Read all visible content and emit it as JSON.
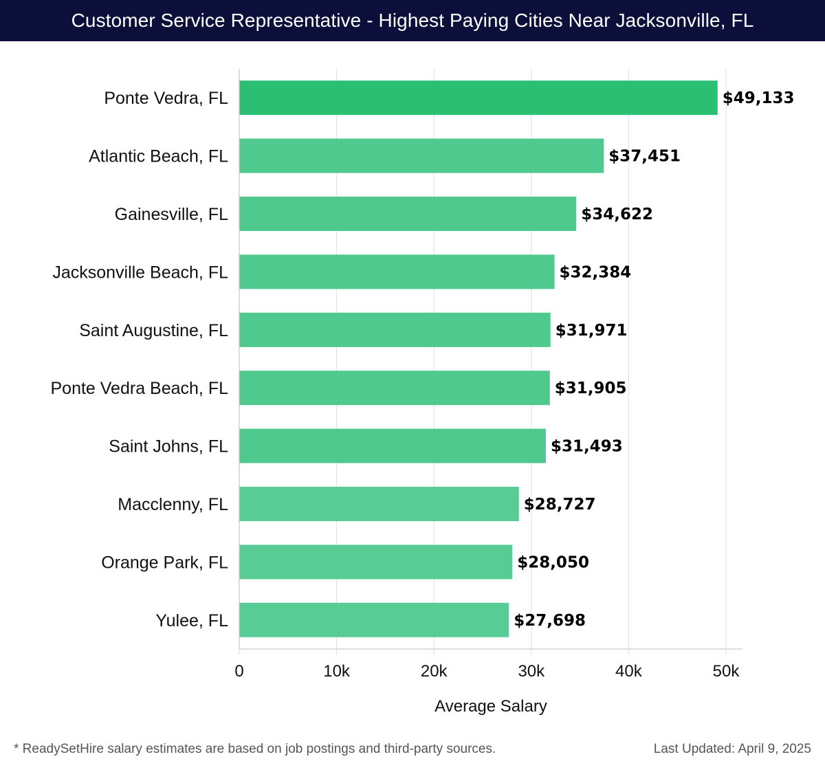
{
  "header": {
    "title": "Customer Service Representative - Highest Paying Cities Near Jacksonville, FL"
  },
  "footer": {
    "note": "* ReadySetHire salary estimates are based on job postings and third-party sources.",
    "last_updated": "Last Updated: April 9, 2025"
  },
  "colors": {
    "header_bg": "#0c0f3a",
    "bar_top": "#2bbf74",
    "bar": "#50c98e",
    "bar_light": "#58cc95",
    "grid": "#e3e3e3",
    "axis": "#cccccc"
  },
  "chart_data": {
    "type": "bar",
    "orientation": "horizontal",
    "title": "Customer Service Representative - Highest Paying Cities Near Jacksonville, FL",
    "xlabel": "Average Salary",
    "ylabel": "",
    "xlim": [
      0,
      50000
    ],
    "grid": true,
    "categories": [
      "Ponte Vedra, FL",
      "Atlantic Beach, FL",
      "Gainesville, FL",
      "Jacksonville Beach, FL",
      "Saint Augustine, FL",
      "Ponte Vedra Beach, FL",
      "Saint Johns, FL",
      "Macclenny, FL",
      "Orange Park, FL",
      "Yulee, FL"
    ],
    "values": [
      49133,
      37451,
      34622,
      32384,
      31971,
      31905,
      31493,
      28727,
      28050,
      27698
    ],
    "value_labels": [
      "$49,133",
      "$37,451",
      "$34,622",
      "$32,384",
      "$31,971",
      "$31,905",
      "$31,493",
      "$28,727",
      "$28,050",
      "$27,698"
    ],
    "ticks": [
      0,
      10000,
      20000,
      30000,
      40000,
      50000
    ],
    "tick_labels": [
      "0",
      "10k",
      "20k",
      "30k",
      "40k",
      "50k"
    ]
  }
}
